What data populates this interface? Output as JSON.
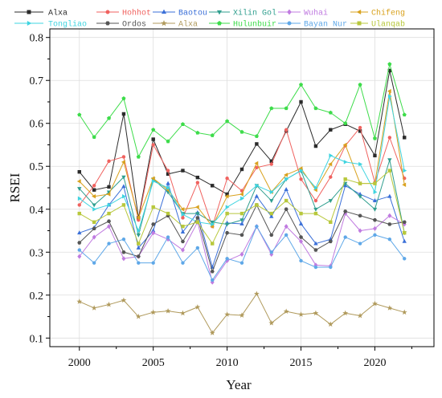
{
  "chart_data": {
    "type": "line",
    "title": "",
    "xlabel": "Year",
    "ylabel": "RSEI",
    "xlim": [
      1998,
      2024
    ],
    "ylim": [
      0.08,
      0.82
    ],
    "xticks": [
      "2000",
      "2005",
      "2010",
      "2015",
      "2020"
    ],
    "yticks": [
      "0.1",
      "0.2",
      "0.3",
      "0.4",
      "0.5",
      "0.6",
      "0.7",
      "0.8"
    ],
    "grid": true,
    "legend": "top",
    "x": [
      2000,
      2001,
      2002,
      2003,
      2004,
      2005,
      2006,
      2007,
      2008,
      2009,
      2010,
      2011,
      2012,
      2013,
      2014,
      2015,
      2016,
      2017,
      2018,
      2019,
      2020,
      2021,
      2022
    ],
    "series": [
      {
        "name": "Alxa",
        "color": "#2b2b2b",
        "marker": "square",
        "values": [
          0.487,
          0.445,
          0.452,
          0.622,
          0.38,
          0.563,
          0.482,
          0.49,
          0.474,
          0.455,
          0.435,
          0.493,
          0.552,
          0.512,
          0.582,
          0.65,
          0.547,
          0.585,
          0.598,
          0.582,
          0.525,
          0.723,
          0.567
        ]
      },
      {
        "name": "Hohhot",
        "color": "#f0625f",
        "marker": "circle",
        "values": [
          0.41,
          0.455,
          0.512,
          0.522,
          0.375,
          0.55,
          0.49,
          0.38,
          0.462,
          0.36,
          0.472,
          0.443,
          0.497,
          0.505,
          0.585,
          0.47,
          0.42,
          0.475,
          0.548,
          0.59,
          0.462,
          0.567,
          0.472
        ]
      },
      {
        "name": "Baotou",
        "color": "#3a6fd8",
        "marker": "triangle-up",
        "values": [
          0.345,
          0.357,
          0.41,
          0.453,
          0.31,
          0.35,
          0.46,
          0.347,
          0.392,
          0.265,
          0.368,
          0.366,
          0.43,
          0.383,
          0.446,
          0.366,
          0.32,
          0.33,
          0.455,
          0.435,
          0.42,
          0.43,
          0.325
        ]
      },
      {
        "name": "Xilin Gol",
        "color": "#2f9e8e",
        "marker": "triangle-down",
        "values": [
          0.448,
          0.41,
          0.44,
          0.475,
          0.34,
          0.47,
          0.44,
          0.39,
          0.39,
          0.37,
          0.365,
          0.375,
          0.455,
          0.42,
          0.47,
          0.49,
          0.4,
          0.42,
          0.46,
          0.43,
          0.4,
          0.515,
          0.345
        ]
      },
      {
        "name": "Wuhai",
        "color": "#c07be0",
        "marker": "diamond",
        "values": [
          0.29,
          0.335,
          0.36,
          0.285,
          0.29,
          0.345,
          0.33,
          0.305,
          0.37,
          0.23,
          0.28,
          0.295,
          0.36,
          0.295,
          0.36,
          0.325,
          0.27,
          0.268,
          0.39,
          0.35,
          0.355,
          0.385,
          0.365
        ]
      },
      {
        "name": "Chifeng",
        "color": "#d9a21e",
        "marker": "triangle-left",
        "values": [
          0.465,
          0.43,
          0.435,
          0.51,
          0.38,
          0.472,
          0.445,
          0.4,
          0.405,
          0.36,
          0.43,
          0.435,
          0.507,
          0.44,
          0.48,
          0.495,
          0.445,
          0.505,
          0.55,
          0.46,
          0.46,
          0.675,
          0.457
        ]
      },
      {
        "name": "Tongliao",
        "color": "#3fd4e0",
        "marker": "triangle-right",
        "values": [
          0.425,
          0.4,
          0.41,
          0.43,
          0.35,
          0.465,
          0.45,
          0.388,
          0.37,
          0.365,
          0.405,
          0.425,
          0.455,
          0.44,
          0.47,
          0.49,
          0.45,
          0.525,
          0.51,
          0.505,
          0.44,
          0.663,
          0.49
        ]
      },
      {
        "name": "Ordos",
        "color": "#555555",
        "marker": "hexagon",
        "values": [
          0.322,
          0.355,
          0.372,
          0.3,
          0.29,
          0.365,
          0.385,
          0.325,
          0.38,
          0.255,
          0.345,
          0.34,
          0.41,
          0.34,
          0.4,
          0.335,
          0.305,
          0.325,
          0.395,
          0.385,
          0.375,
          0.365,
          0.37
        ]
      },
      {
        "name": "Alxa",
        "color": "#b09a5c",
        "marker": "star",
        "values": [
          0.185,
          0.17,
          0.178,
          0.188,
          0.15,
          0.16,
          0.163,
          0.158,
          0.172,
          0.112,
          0.155,
          0.153,
          0.203,
          0.135,
          0.162,
          0.155,
          0.158,
          0.132,
          0.158,
          0.152,
          0.18,
          0.17,
          0.16
        ]
      },
      {
        "name": "Hulunbuir",
        "color": "#3ddc4a",
        "marker": "pentagon",
        "values": [
          0.62,
          0.568,
          0.612,
          0.658,
          0.522,
          0.585,
          0.558,
          0.598,
          0.578,
          0.572,
          0.605,
          0.58,
          0.57,
          0.635,
          0.635,
          0.69,
          0.635,
          0.625,
          0.6,
          0.69,
          0.565,
          0.738,
          0.62
        ]
      },
      {
        "name": "Bayan Nur",
        "color": "#5fa8e8",
        "marker": "circle",
        "values": [
          0.305,
          0.275,
          0.32,
          0.33,
          0.275,
          0.275,
          0.335,
          0.275,
          0.31,
          0.235,
          0.285,
          0.275,
          0.36,
          0.3,
          0.34,
          0.28,
          0.265,
          0.265,
          0.335,
          0.32,
          0.34,
          0.33,
          0.285
        ]
      },
      {
        "name": "Ulanqab",
        "color": "#b8c83c",
        "marker": "square",
        "values": [
          0.39,
          0.37,
          0.39,
          0.41,
          0.32,
          0.405,
          0.39,
          0.36,
          0.37,
          0.32,
          0.39,
          0.39,
          0.41,
          0.39,
          0.42,
          0.39,
          0.39,
          0.37,
          0.47,
          0.46,
          0.46,
          0.49,
          0.345
        ]
      }
    ]
  }
}
